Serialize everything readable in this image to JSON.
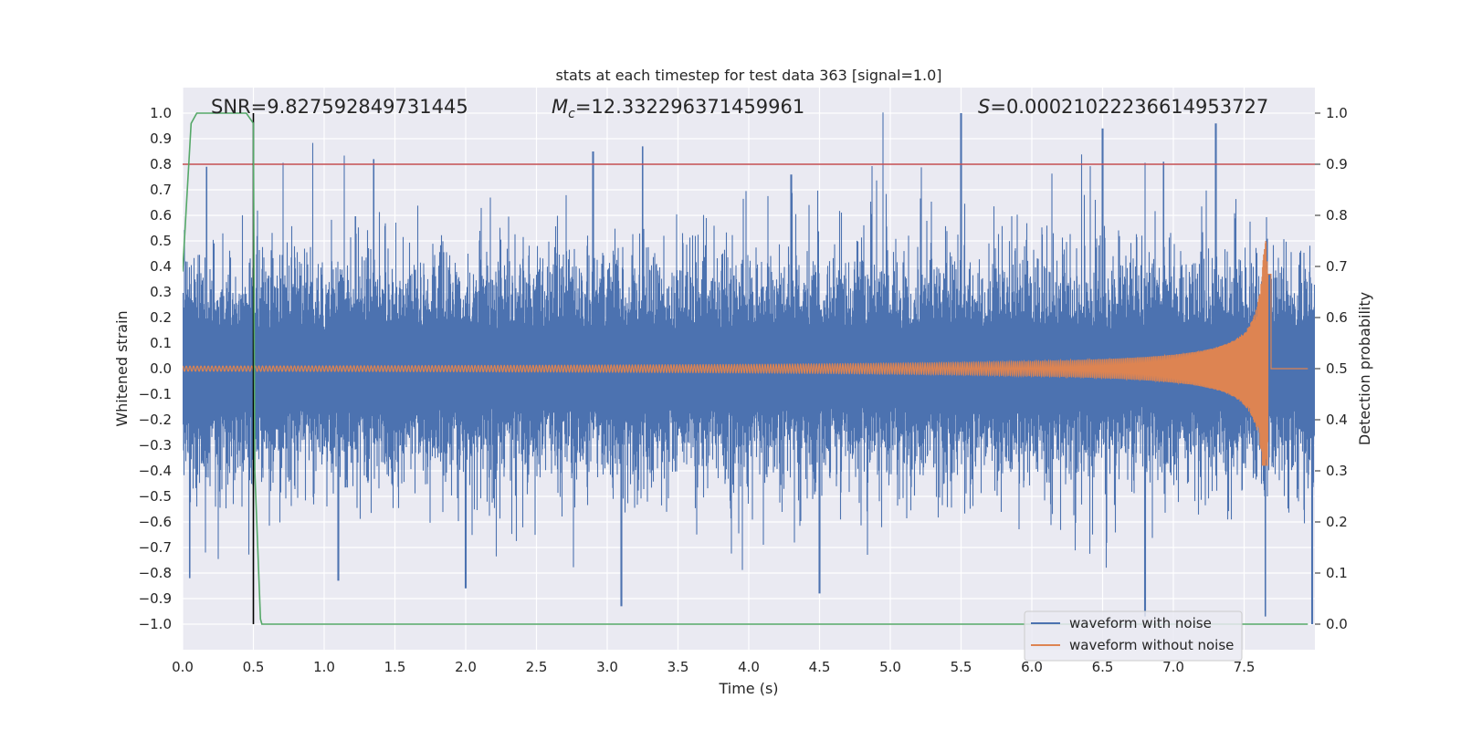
{
  "chart_data": {
    "type": "line",
    "title": "stats at each timestep for test data 363 [signal=1.0]",
    "xlabel": "Time (s)",
    "ylabel": "Whitened strain",
    "ylabel_right": "Detection probability",
    "xlim": [
      0.0,
      8.0
    ],
    "ylim": [
      -1.1,
      1.1
    ],
    "ylim_right": [
      -0.05,
      1.05
    ],
    "xticks": [
      "0.0",
      "0.5",
      "1.0",
      "1.5",
      "2.0",
      "2.5",
      "3.0",
      "3.5",
      "4.0",
      "4.5",
      "5.0",
      "5.5",
      "6.0",
      "6.5",
      "7.0",
      "7.5"
    ],
    "xtick_values": [
      0.0,
      0.5,
      1.0,
      1.5,
      2.0,
      2.5,
      3.0,
      3.5,
      4.0,
      4.5,
      5.0,
      5.5,
      6.0,
      6.5,
      7.0,
      7.5
    ],
    "yticks_left": [
      "1.0",
      "0.9",
      "0.8",
      "0.7",
      "0.6",
      "0.5",
      "0.4",
      "0.3",
      "0.2",
      "0.1",
      "0.0",
      "−0.1",
      "−0.2",
      "−0.3",
      "−0.4",
      "−0.5",
      "−0.6",
      "−0.7",
      "−0.8",
      "−0.9",
      "−1.0"
    ],
    "ytick_values_left": [
      1.0,
      0.9,
      0.8,
      0.7,
      0.6,
      0.5,
      0.4,
      0.3,
      0.2,
      0.1,
      0.0,
      -0.1,
      -0.2,
      -0.3,
      -0.4,
      -0.5,
      -0.6,
      -0.7,
      -0.8,
      -0.9,
      -1.0
    ],
    "yticks_right": [
      "1.0",
      "0.9",
      "0.8",
      "0.7",
      "0.6",
      "0.5",
      "0.4",
      "0.3",
      "0.2",
      "0.1",
      "0.0"
    ],
    "ytick_values_right": [
      1.0,
      0.9,
      0.8,
      0.7,
      0.6,
      0.5,
      0.4,
      0.3,
      0.2,
      0.1,
      0.0
    ],
    "grid": true,
    "legend_position": "bottom-right",
    "annotations": {
      "snr": "SNR=9.827592849731445",
      "mc_symbol": "M",
      "mc_sub": "c",
      "mc_value": "=12.332296371459961",
      "s_symbol": "S",
      "s_value": "=0.00021022236614953727"
    },
    "series": [
      {
        "name": "waveform with noise",
        "color": "#4c72b0",
        "axis": "left",
        "description_stats": {
          "t_start": 0.0,
          "t_end": 8.0,
          "typical_amplitude": 0.3,
          "max": 1.0,
          "min": -1.0
        },
        "peaks": [
          [
            0.17,
            0.79
          ],
          [
            1.35,
            0.82
          ],
          [
            2.9,
            0.85
          ],
          [
            3.25,
            0.87
          ],
          [
            4.3,
            0.76
          ],
          [
            5.5,
            1.0
          ],
          [
            6.5,
            0.94
          ],
          [
            6.93,
            0.81
          ],
          [
            7.3,
            0.96
          ],
          [
            0.05,
            -0.82
          ],
          [
            1.1,
            -0.83
          ],
          [
            2.0,
            -0.86
          ],
          [
            3.1,
            -0.93
          ],
          [
            4.5,
            -0.88
          ],
          [
            6.8,
            -0.97
          ],
          [
            7.65,
            -0.97
          ],
          [
            7.98,
            -1.0
          ]
        ]
      },
      {
        "name": "waveform without noise",
        "color": "#dd8452",
        "axis": "left",
        "chirp": {
          "t_start": 0.0,
          "t_merger": 7.67,
          "base_amplitude": 0.01,
          "peak_amplitude": 0.5,
          "min_amplitude": -0.38
        }
      },
      {
        "name": "detection probability",
        "color": "#55a868",
        "axis": "right",
        "x": [
          0.0,
          0.06,
          0.1,
          0.2,
          0.3,
          0.45,
          0.5,
          0.51,
          0.55,
          0.56,
          0.57,
          7.95
        ],
        "y": [
          0.69,
          0.98,
          1.0,
          1.0,
          1.0,
          1.0,
          0.98,
          0.3,
          0.01,
          0.0,
          0.0,
          0.0
        ]
      }
    ],
    "threshold_right": {
      "value": 0.9,
      "color": "#c44e52"
    },
    "vertical_marker": {
      "x": 0.5,
      "y_from": -1.0,
      "y_to": 1.0,
      "color": "#000000"
    }
  },
  "legend": [
    {
      "label": "waveform with noise",
      "color": "#4c72b0"
    },
    {
      "label": "waveform without noise",
      "color": "#dd8452"
    }
  ]
}
